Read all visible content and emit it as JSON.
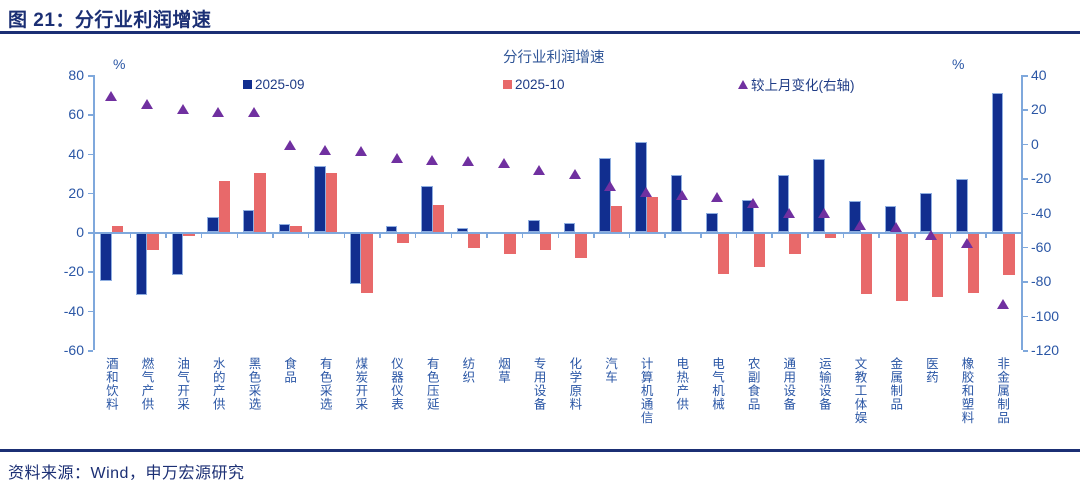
{
  "figure": {
    "title": "图 21：分行业利润增速",
    "source": "资料来源：Wind，申万宏源研究"
  },
  "chart_data": {
    "type": "bar",
    "title": "分行业利润增速",
    "unit_left": "%",
    "unit_right": "%",
    "legend_position": "top",
    "grid": false,
    "categories": [
      "酒和饮料",
      "燃气产供",
      "油气开采",
      "水的产供",
      "黑色采选",
      "食品",
      "有色采选",
      "煤炭开采",
      "仪器仪表",
      "有色压延",
      "纺织",
      "烟草",
      "专用设备",
      "化学原料",
      "汽车",
      "计算机通信",
      "电热产供",
      "电气机械",
      "农副食品",
      "通用设备",
      "运输设备",
      "文教工体娱",
      "金属制品",
      "医药",
      "橡胶和塑料",
      "非金属制品"
    ],
    "series": [
      {
        "name": "2025-09",
        "type": "bar",
        "axis": "left",
        "values": [
          -25,
          -32,
          -22,
          7.5,
          11.5,
          4,
          33.5,
          -26.5,
          3,
          23.5,
          2,
          0,
          6,
          4.5,
          38,
          46,
          29,
          9.5,
          16.5,
          29,
          37,
          16,
          13.5,
          20,
          27,
          71
        ]
      },
      {
        "name": "2025-10",
        "type": "bar",
        "axis": "left",
        "values": [
          3,
          -9,
          -2,
          26,
          30,
          3,
          30,
          -31,
          -5.5,
          14,
          -8,
          -11,
          -9,
          -13,
          13.5,
          18,
          -1,
          -21.5,
          -18,
          -11,
          -3,
          -31.5,
          -35,
          -33,
          -31,
          -22
        ]
      },
      {
        "name": "较上月变化(右轴)",
        "type": "triangle",
        "axis": "right",
        "values": [
          28,
          23,
          20,
          18.5,
          18.5,
          -1,
          -3.5,
          -4.5,
          -8.5,
          -9.5,
          -10,
          -11,
          -15,
          -17.5,
          -24.5,
          -28,
          -30,
          -31,
          -34.5,
          -40,
          -40,
          -47.5,
          -48.5,
          -53,
          -58,
          -93
        ]
      }
    ],
    "left_axis": {
      "min": -60,
      "max": 80,
      "ticks": [
        80,
        60,
        40,
        20,
        0,
        -20,
        -40,
        -60
      ]
    },
    "right_axis": {
      "min": -120,
      "max": 40,
      "ticks": [
        40,
        20,
        0,
        -20,
        -40,
        -60,
        -80,
        -100,
        -120
      ]
    }
  },
  "colors": {
    "bar_2025_09": "#112E8F",
    "bar_2025_09_edge": "#8FAEE0",
    "bar_2025_10": "#E8696A",
    "triangle": "#7030A0",
    "axis_line": "#7FA8DC",
    "axis_text": "#2A56A5",
    "chart_title_text": "#2F5597",
    "legend_text": "#1F3C86",
    "heading_text": "#1B2F74"
  }
}
